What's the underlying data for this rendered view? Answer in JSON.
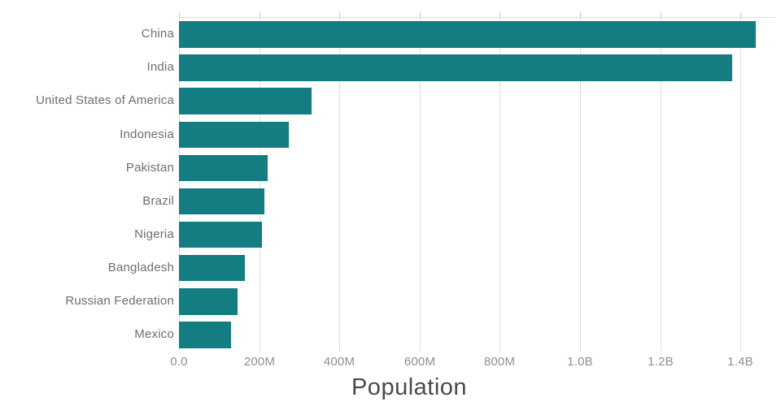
{
  "chart_data": {
    "type": "bar",
    "orientation": "horizontal",
    "title": "",
    "xlabel": "Population",
    "ylabel": "",
    "units": "people (axis in millions/billions)",
    "categories": [
      "China",
      "India",
      "United States of America",
      "Indonesia",
      "Pakistan",
      "Brazil",
      "Nigeria",
      "Bangladesh",
      "Russian Federation",
      "Mexico"
    ],
    "values_millions": [
      1439,
      1380,
      331,
      273.5,
      221,
      212.5,
      206,
      164.7,
      146,
      129
    ],
    "x_axis": {
      "range_millions": [
        0,
        1485
      ],
      "ticks": [
        {
          "value_millions": 0,
          "label": "0.0"
        },
        {
          "value_millions": 200,
          "label": "200M"
        },
        {
          "value_millions": 400,
          "label": "400M"
        },
        {
          "value_millions": 600,
          "label": "600M"
        },
        {
          "value_millions": 800,
          "label": "800M"
        },
        {
          "value_millions": 1000,
          "label": "1.0B"
        },
        {
          "value_millions": 1200,
          "label": "1.2B"
        },
        {
          "value_millions": 1400,
          "label": "1.4B"
        }
      ]
    },
    "legend": "none",
    "grid": "vertical-only",
    "colors": {
      "bar_fill": "#147d82",
      "gridline": "#dedede",
      "tick_mark": "#c9c9c9",
      "tick_label": "#8e8e8e",
      "category_label": "#6e6e6e",
      "axis_title": "#4a4a4a",
      "background": "#ffffff"
    }
  }
}
